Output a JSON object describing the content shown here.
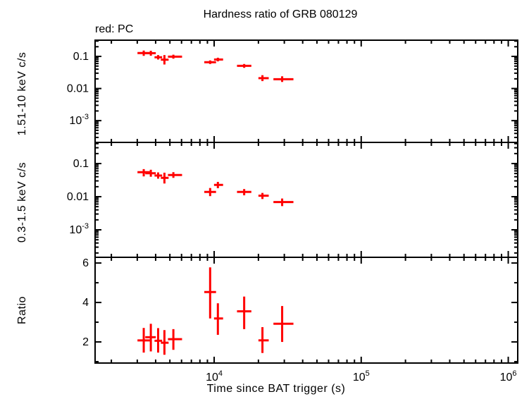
{
  "chart_data": {
    "type": "scatter",
    "title": "Hardness ratio of GRB 080129",
    "annotation": "red: PC",
    "xlabel": "Time since BAT trigger (s)",
    "x_scale": "log",
    "xlim": [
      1550,
      1160000
    ],
    "x_major_ticks": [
      {
        "value": 10000,
        "label": "10^4"
      },
      {
        "value": 100000,
        "label": "10^5"
      },
      {
        "value": 1000000,
        "label": "10^6"
      }
    ],
    "point_color": "#ff0000",
    "frame_color": "#000000",
    "background_color": "#ffffff",
    "legend": {
      "PC_mode_color": "#ff0000"
    },
    "panels": [
      {
        "name": "hard-band-rate",
        "ylabel": "1.51-10 keV c/s",
        "y_scale": "log",
        "ylim": [
          0.00021,
          0.32
        ],
        "y_major_ticks": [
          {
            "value": 0.1,
            "label": "0.1"
          },
          {
            "value": 0.01,
            "label": "0.01"
          },
          {
            "value": 0.001,
            "label": "10^-3"
          }
        ],
        "points": [
          {
            "t": 3320,
            "t_lo": 3010,
            "t_hi": 3690,
            "y": 0.127,
            "y_lo": 0.104,
            "y_hi": 0.152
          },
          {
            "t": 3710,
            "t_lo": 3400,
            "t_hi": 4010,
            "y": 0.126,
            "y_lo": 0.105,
            "y_hi": 0.15
          },
          {
            "t": 4160,
            "t_lo": 3930,
            "t_hi": 4430,
            "y": 0.094,
            "y_lo": 0.08,
            "y_hi": 0.11
          },
          {
            "t": 4590,
            "t_lo": 4340,
            "t_hi": 4900,
            "y": 0.079,
            "y_lo": 0.056,
            "y_hi": 0.11
          },
          {
            "t": 5280,
            "t_lo": 4850,
            "t_hi": 6050,
            "y": 0.098,
            "y_lo": 0.085,
            "y_hi": 0.113
          },
          {
            "t": 9390,
            "t_lo": 8570,
            "t_hi": 10300,
            "y": 0.066,
            "y_lo": 0.058,
            "y_hi": 0.075
          },
          {
            "t": 10600,
            "t_lo": 9980,
            "t_hi": 11500,
            "y": 0.08,
            "y_lo": 0.07,
            "y_hi": 0.091
          },
          {
            "t": 16000,
            "t_lo": 14300,
            "t_hi": 17900,
            "y": 0.051,
            "y_lo": 0.044,
            "y_hi": 0.058
          },
          {
            "t": 21300,
            "t_lo": 20000,
            "t_hi": 23500,
            "y": 0.021,
            "y_lo": 0.017,
            "y_hi": 0.026
          },
          {
            "t": 29000,
            "t_lo": 25300,
            "t_hi": 34600,
            "y": 0.0195,
            "y_lo": 0.016,
            "y_hi": 0.024
          }
        ]
      },
      {
        "name": "soft-band-rate",
        "ylabel": "0.3-1.5 keV c/s",
        "y_scale": "log",
        "ylim": [
          0.000148,
          0.435
        ],
        "y_major_ticks": [
          {
            "value": 0.1,
            "label": "0.1"
          },
          {
            "value": 0.01,
            "label": "0.01"
          },
          {
            "value": 0.001,
            "label": "10^-3"
          }
        ],
        "points": [
          {
            "t": 3320,
            "t_lo": 3010,
            "t_hi": 3690,
            "y": 0.055,
            "y_lo": 0.041,
            "y_hi": 0.068
          },
          {
            "t": 3710,
            "t_lo": 3400,
            "t_hi": 4010,
            "y": 0.051,
            "y_lo": 0.04,
            "y_hi": 0.065
          },
          {
            "t": 4160,
            "t_lo": 3930,
            "t_hi": 4430,
            "y": 0.0435,
            "y_lo": 0.035,
            "y_hi": 0.054
          },
          {
            "t": 4590,
            "t_lo": 4340,
            "t_hi": 4900,
            "y": 0.037,
            "y_lo": 0.025,
            "y_hi": 0.053
          },
          {
            "t": 5280,
            "t_lo": 4850,
            "t_hi": 6050,
            "y": 0.045,
            "y_lo": 0.037,
            "y_hi": 0.055
          },
          {
            "t": 9390,
            "t_lo": 8570,
            "t_hi": 10300,
            "y": 0.0139,
            "y_lo": 0.0104,
            "y_hi": 0.0183
          },
          {
            "t": 10600,
            "t_lo": 9980,
            "t_hi": 11500,
            "y": 0.0227,
            "y_lo": 0.018,
            "y_hi": 0.028
          },
          {
            "t": 16000,
            "t_lo": 14300,
            "t_hi": 17900,
            "y": 0.0139,
            "y_lo": 0.011,
            "y_hi": 0.017
          },
          {
            "t": 21300,
            "t_lo": 20000,
            "t_hi": 23500,
            "y": 0.0107,
            "y_lo": 0.0085,
            "y_hi": 0.013
          },
          {
            "t": 29000,
            "t_lo": 25300,
            "t_hi": 34600,
            "y": 0.0069,
            "y_lo": 0.0052,
            "y_hi": 0.0088
          }
        ]
      },
      {
        "name": "hardness-ratio",
        "ylabel": "Ratio",
        "y_scale": "linear",
        "ylim": [
          0.93,
          6.29
        ],
        "y_minor_step": 1,
        "y_major_ticks": [
          {
            "value": 2,
            "label": "2"
          },
          {
            "value": 4,
            "label": "4"
          },
          {
            "value": 6,
            "label": "6"
          }
        ],
        "points": [
          {
            "t": 3320,
            "t_lo": 3010,
            "t_hi": 3690,
            "y": 2.08,
            "y_lo": 1.46,
            "y_hi": 2.71
          },
          {
            "t": 3710,
            "t_lo": 3400,
            "t_hi": 4010,
            "y": 2.24,
            "y_lo": 1.52,
            "y_hi": 2.92
          },
          {
            "t": 4160,
            "t_lo": 3930,
            "t_hi": 4430,
            "y": 2.06,
            "y_lo": 1.46,
            "y_hi": 2.7
          },
          {
            "t": 4590,
            "t_lo": 4340,
            "t_hi": 4900,
            "y": 1.96,
            "y_lo": 1.35,
            "y_hi": 2.6
          },
          {
            "t": 5280,
            "t_lo": 4850,
            "t_hi": 6050,
            "y": 2.14,
            "y_lo": 1.6,
            "y_hi": 2.65
          },
          {
            "t": 9390,
            "t_lo": 8570,
            "t_hi": 10300,
            "y": 4.53,
            "y_lo": 3.19,
            "y_hi": 5.78
          },
          {
            "t": 10600,
            "t_lo": 9980,
            "t_hi": 11500,
            "y": 3.19,
            "y_lo": 2.36,
            "y_hi": 3.96
          },
          {
            "t": 16000,
            "t_lo": 14300,
            "t_hi": 17900,
            "y": 3.55,
            "y_lo": 2.65,
            "y_hi": 4.3
          },
          {
            "t": 21300,
            "t_lo": 20000,
            "t_hi": 23500,
            "y": 2.08,
            "y_lo": 1.44,
            "y_hi": 2.75
          },
          {
            "t": 29000,
            "t_lo": 25300,
            "t_hi": 34600,
            "y": 2.92,
            "y_lo": 2.0,
            "y_hi": 3.82
          }
        ]
      }
    ]
  }
}
